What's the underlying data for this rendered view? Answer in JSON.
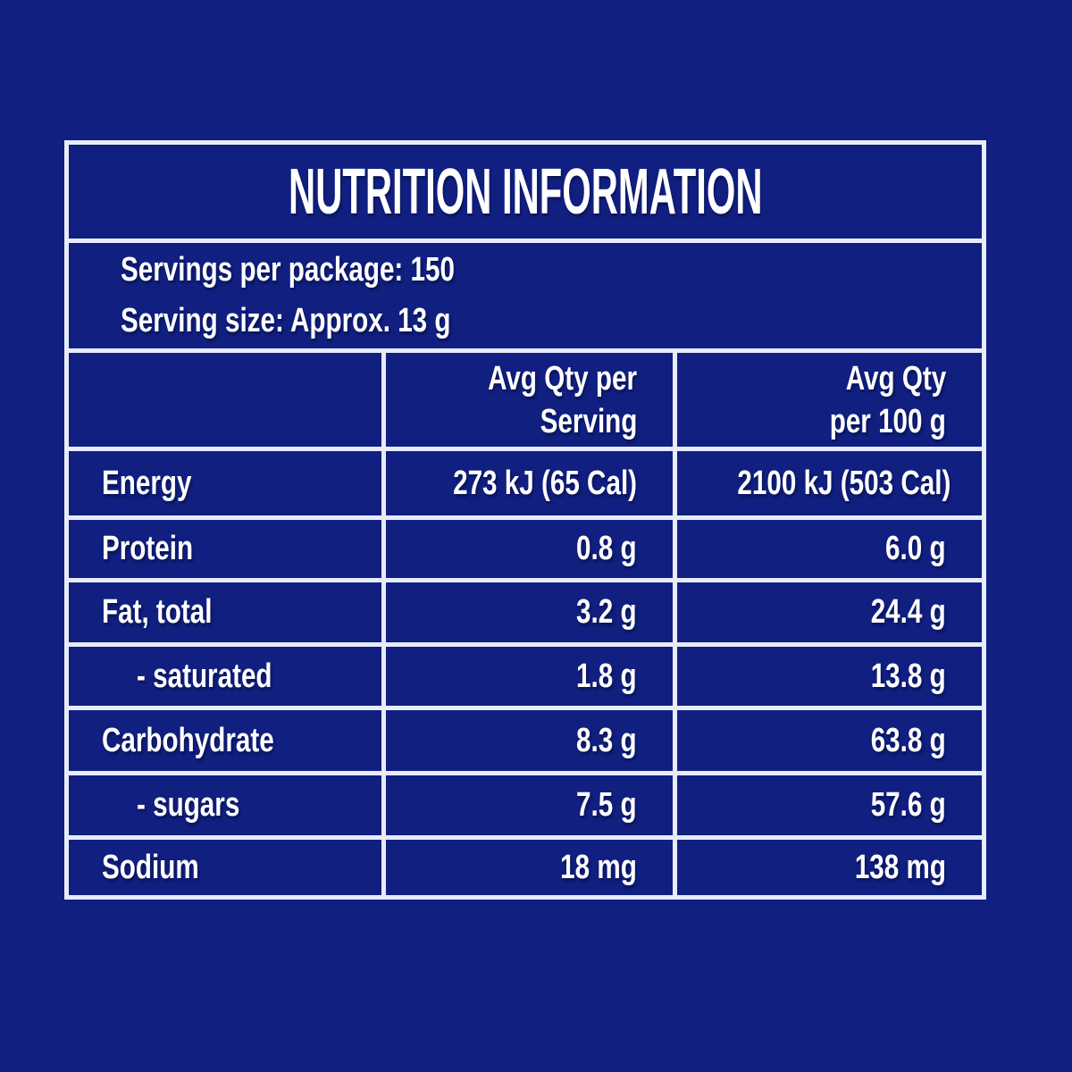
{
  "colors": {
    "background": "#101f80",
    "border": "#e7ecf8",
    "text": "#ffffff"
  },
  "panel": {
    "title": "NUTRITION INFORMATION",
    "servings_per_package": "Servings per package: 150",
    "serving_size": "Serving size: Approx. 13 g",
    "columns": {
      "label_header": "",
      "per_serving_line1": "Avg Qty per",
      "per_serving_line2": "Serving",
      "per_100g_line1": "Avg Qty",
      "per_100g_line2": "per 100 g"
    },
    "rows": [
      {
        "label": "Energy",
        "per_serving": "273 kJ (65 Cal)",
        "per_100g": "2100 kJ (503 Cal)"
      },
      {
        "label": "Protein",
        "per_serving": "0.8 g",
        "per_100g": "6.0 g"
      },
      {
        "label": "Fat, total",
        "per_serving": "3.2 g",
        "per_100g": "24.4 g"
      },
      {
        "label": "- saturated",
        "per_serving": "1.8 g",
        "per_100g": "13.8 g"
      },
      {
        "label": "Carbohydrate",
        "per_serving": "8.3 g",
        "per_100g": "63.8 g"
      },
      {
        "label": "- sugars",
        "per_serving": "7.5 g",
        "per_100g": "57.6 g"
      },
      {
        "label": "Sodium",
        "per_serving": "18 mg",
        "per_100g": "138 mg"
      }
    ]
  }
}
